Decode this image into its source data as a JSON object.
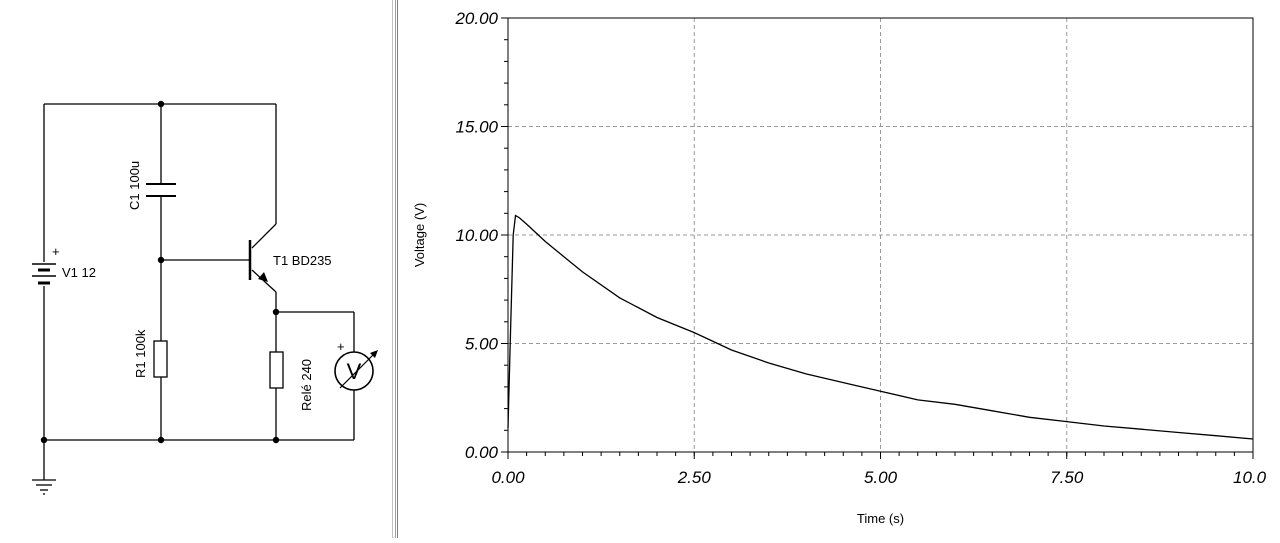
{
  "schematic": {
    "battery_plus": "+",
    "battery_label": "V1 12",
    "capacitor_label": "C1 100u",
    "transistor_label": "T1 BD235",
    "resistor_label": "R1 100k",
    "relay_label": "Relé 240",
    "voltmeter_plus": "+",
    "voltmeter_symbol": "V"
  },
  "chart_data": {
    "type": "line",
    "xlabel": "Time (s)",
    "ylabel": "Voltage (V)",
    "xlim": [
      0,
      10
    ],
    "ylim": [
      0,
      20
    ],
    "x_ticks": [
      "0.00",
      "2.50",
      "5.00",
      "7.50",
      "10.0"
    ],
    "y_ticks": [
      "0.00",
      "5.00",
      "10.00",
      "15.00",
      "20.00"
    ],
    "grid": true,
    "series": [
      {
        "x": [
          0,
          0.03,
          0.07,
          0.1,
          0.15,
          0.25,
          0.5,
          0.75,
          1,
          1.5,
          2,
          2.5,
          3,
          3.5,
          4,
          4.5,
          5,
          5.5,
          6,
          6.5,
          7,
          7.5,
          8,
          8.5,
          9,
          9.5,
          10
        ],
        "y": [
          1.1,
          5,
          10,
          10.9,
          10.8,
          10.5,
          9.7,
          9,
          8.3,
          7.1,
          6.2,
          5.5,
          4.7,
          4.1,
          3.6,
          3.2,
          2.8,
          2.4,
          2.2,
          1.9,
          1.6,
          1.4,
          1.2,
          1.05,
          0.9,
          0.75,
          0.6
        ]
      }
    ]
  }
}
